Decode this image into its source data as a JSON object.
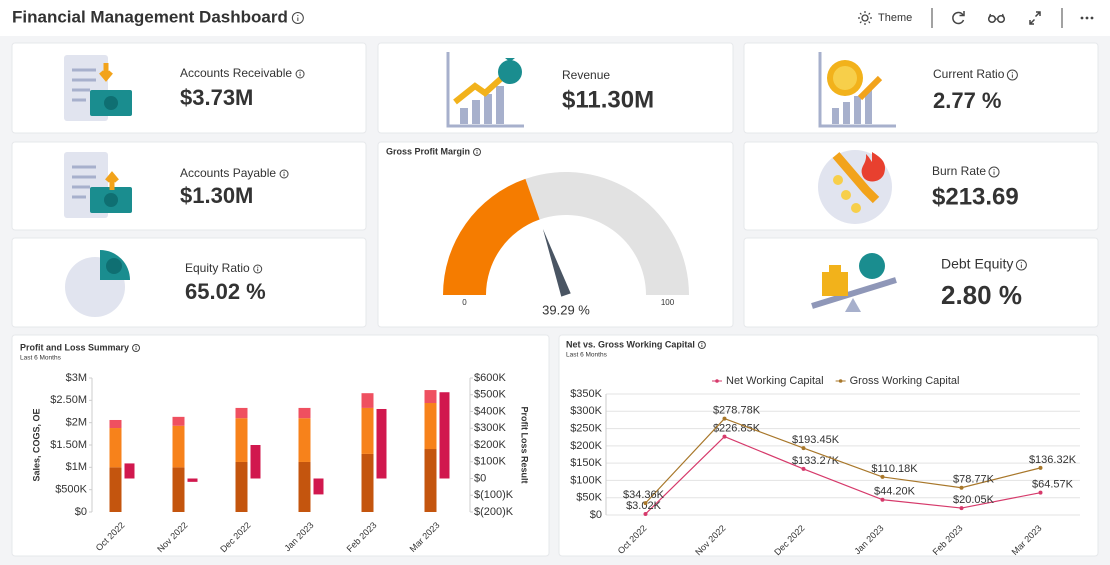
{
  "header": {
    "title": "Financial Management Dashboard",
    "theme": "Theme"
  },
  "kpis": [
    {
      "label": "Accounts Receivable",
      "value": "$3.73M"
    },
    {
      "label": "Revenue",
      "value": "$11.30M"
    },
    {
      "label": "Current Ratio",
      "value": "2.77 %"
    },
    {
      "label": "Accounts Payable",
      "value": "$1.30M"
    },
    {
      "label": "Burn Rate",
      "value": "$213.69"
    },
    {
      "label": "Equity Ratio",
      "value": "65.02 %"
    },
    {
      "label": "Debt Equity",
      "value": "2.80 %"
    }
  ],
  "chart_data": [
    {
      "type": "gauge",
      "title": "Gross Profit Margin",
      "values": [
        39.29
      ],
      "value_labels": [
        "39.29 %"
      ],
      "ylim": [
        0,
        100
      ],
      "yticks": [
        0,
        100
      ],
      "color": "#f57c00",
      "track_color": "#e2e2e2",
      "needle_color": "#4a5563"
    },
    {
      "type": "bar",
      "title": "Profit and Loss Summary",
      "subtitle": "Last 6 Months",
      "y_label": "Sales, COGS, OE",
      "y2_label": "Profit Loss Result",
      "stacked": true,
      "categories": [
        "Oct 2022",
        "Nov 2022",
        "Dec 2022",
        "Jan 2023",
        "Feb 2023",
        "Mar 2023"
      ],
      "ylim": [
        0,
        3000000
      ],
      "yticks": [
        {
          "value": 0,
          "label": "$0"
        },
        {
          "value": 500000,
          "label": "$500K"
        },
        {
          "value": 1000000,
          "label": "$1M"
        },
        {
          "value": 1500000,
          "label": "$1.50M"
        },
        {
          "value": 2000000,
          "label": "$2M"
        },
        {
          "value": 2500000,
          "label": "$2.50M"
        },
        {
          "value": 3000000,
          "label": "$3M"
        }
      ],
      "y2lim": [
        -200000,
        600000
      ],
      "y2ticks": [
        {
          "value": -200000,
          "label": "$(200)K"
        },
        {
          "value": -100000,
          "label": "$(100)K"
        },
        {
          "value": 0,
          "label": "$0"
        },
        {
          "value": 100000,
          "label": "$100K"
        },
        {
          "value": 200000,
          "label": "$200K"
        },
        {
          "value": 300000,
          "label": "$300K"
        },
        {
          "value": 400000,
          "label": "$400K"
        },
        {
          "value": 500000,
          "label": "$500K"
        },
        {
          "value": 600000,
          "label": "$600K"
        }
      ],
      "series": [
        {
          "color": "#c4550e",
          "values": [
            1000000,
            1000000,
            1120000,
            1120000,
            1300000,
            1410000
          ]
        },
        {
          "color": "#f7821b",
          "values": [
            880000,
            930000,
            980000,
            980000,
            1030000,
            1030000
          ]
        },
        {
          "color": "#ef5060",
          "values": [
            180000,
            200000,
            230000,
            230000,
            330000,
            290000
          ]
        },
        {
          "color": "#d1184e",
          "axis": "y2",
          "values": [
            90000,
            -20000,
            200000,
            -95000,
            415000,
            515000
          ]
        }
      ]
    },
    {
      "type": "line",
      "title": "Net vs. Gross Working Capital",
      "subtitle": "Last 6 Months",
      "categories": [
        "Oct 2022",
        "Nov 2022",
        "Dec 2022",
        "Jan 2023",
        "Feb 2023",
        "Mar 2023"
      ],
      "ylim": [
        0,
        350000
      ],
      "yticks": [
        {
          "value": 0,
          "label": "$0"
        },
        {
          "value": 50000,
          "label": "$50K"
        },
        {
          "value": 100000,
          "label": "$100K"
        },
        {
          "value": 150000,
          "label": "$150K"
        },
        {
          "value": 200000,
          "label": "$200K"
        },
        {
          "value": 250000,
          "label": "$250K"
        },
        {
          "value": 300000,
          "label": "$300K"
        },
        {
          "value": 350000,
          "label": "$350K"
        }
      ],
      "grid": true,
      "legend": "top",
      "series": [
        {
          "name": "Net Working Capital",
          "color": "#d63a6b",
          "values": [
            3020,
            226850,
            133270,
            44200,
            20050,
            64570
          ],
          "value_labels": [
            "$3.02K",
            "$226.85K",
            "$133.27K",
            "$44.20K",
            "$20.05K",
            "$64.57K"
          ]
        },
        {
          "name": "Gross Working Capital",
          "color": "#a8772a",
          "values": [
            34360,
            278780,
            193450,
            110180,
            78770,
            136320
          ],
          "value_labels": [
            "$34.36K",
            "$278.78K",
            "$193.45K",
            "$110.18K",
            "$78.77K",
            "$136.32K"
          ]
        }
      ]
    }
  ]
}
